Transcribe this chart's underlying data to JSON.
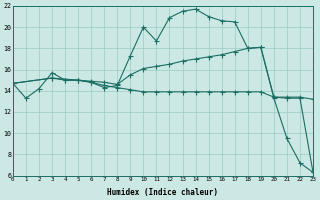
{
  "xlabel": "Humidex (Indice chaleur)",
  "bg_color": "#cce8e4",
  "grid_color": "#99ccC4",
  "line_color": "#1a6e63",
  "xlim": [
    0,
    23
  ],
  "ylim": [
    6,
    22
  ],
  "xticks": [
    0,
    1,
    2,
    3,
    4,
    5,
    6,
    7,
    8,
    9,
    10,
    11,
    12,
    13,
    14,
    15,
    16,
    17,
    18,
    19,
    20,
    21,
    22,
    23
  ],
  "yticks": [
    6,
    8,
    10,
    12,
    14,
    16,
    18,
    20,
    22
  ],
  "curve1_x": [
    0,
    1,
    2,
    3,
    4,
    5,
    6,
    7,
    8,
    9,
    10,
    11,
    12,
    13,
    14,
    15,
    16,
    17,
    18,
    19,
    20,
    21,
    22,
    23
  ],
  "curve1_y": [
    14.7,
    13.3,
    14.2,
    15.7,
    15.0,
    15.0,
    14.8,
    14.3,
    14.5,
    17.3,
    20.0,
    18.7,
    20.9,
    21.5,
    21.7,
    21.0,
    20.6,
    20.5,
    18.0,
    18.1,
    13.3,
    9.5,
    7.2,
    6.3
  ],
  "curve2_x": [
    0,
    3,
    4,
    5,
    6,
    7,
    8,
    9,
    10,
    11,
    12,
    13,
    14,
    15,
    16,
    17,
    18,
    19,
    20,
    21,
    22,
    23
  ],
  "curve2_y": [
    14.7,
    15.2,
    15.0,
    15.0,
    14.8,
    14.5,
    14.3,
    14.1,
    13.9,
    13.9,
    13.9,
    13.9,
    13.9,
    13.9,
    13.9,
    13.9,
    13.9,
    13.9,
    13.4,
    13.4,
    13.4,
    13.2
  ],
  "curve3_x": [
    0,
    3,
    5,
    6,
    7,
    8,
    9,
    10,
    11,
    12,
    13,
    14,
    15,
    16,
    17,
    18,
    19,
    20,
    21,
    22,
    23
  ],
  "curve3_y": [
    14.7,
    15.2,
    15.0,
    14.9,
    14.8,
    14.6,
    15.5,
    16.1,
    16.3,
    16.5,
    16.8,
    17.0,
    17.2,
    17.4,
    17.7,
    18.0,
    18.1,
    13.4,
    13.3,
    13.3,
    6.3
  ]
}
